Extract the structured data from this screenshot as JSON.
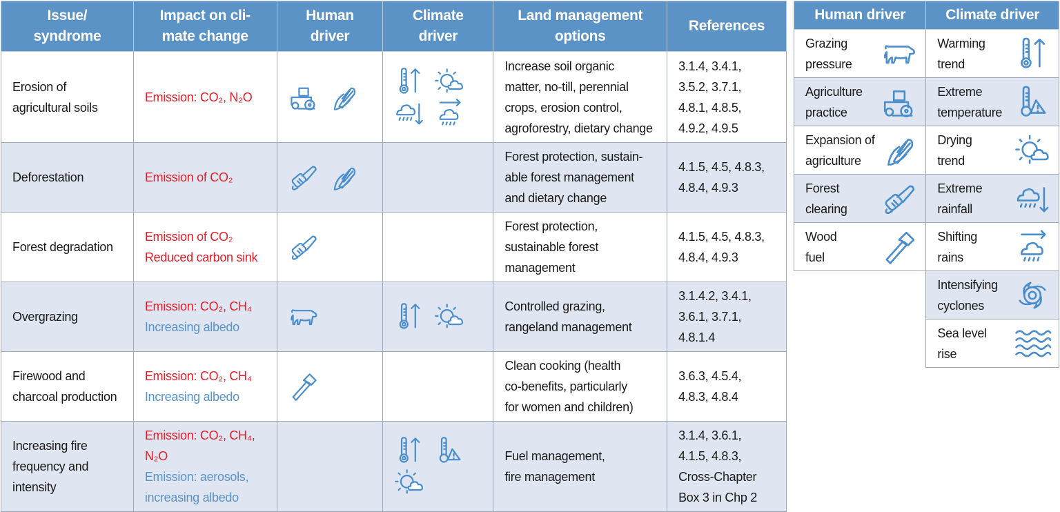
{
  "colors": {
    "header_bg": "#5b93c6",
    "alt_row": "#dfe6f1",
    "emission_red": "#e0202a",
    "albedo_blue": "#5b93c6",
    "icon_blue": "#4a8dcc"
  },
  "main": {
    "headers": [
      "Issue/\nsyndrome",
      "Impact on cli-\nmate change",
      "Human\ndriver",
      "Climate\ndriver",
      "Land management\noptions",
      "References"
    ],
    "rows": [
      {
        "issue": "Erosion of\nagricultural soils",
        "impact": [
          {
            "text": "Emission: CO₂, N₂O",
            "color": "red"
          }
        ],
        "human": [
          "tractor-icon",
          "corn-icon"
        ],
        "climate": [
          "thermometer-up-icon",
          "sun-cloud-icon",
          "rain-down-icon",
          "shifting-rain-icon"
        ],
        "options": "Increase soil organic\nmatter, no-till, perennial\ncrops, erosion control,\nagroforestry, dietary change",
        "refs": "3.1.4, 3.4.1,\n3.5.2, 3.7.1,\n4.8.1, 4.8.5,\n4.9.2, 4.9.5"
      },
      {
        "issue": "Deforestation",
        "impact": [
          {
            "text": "Emission of CO₂",
            "color": "red"
          }
        ],
        "human": [
          "chainsaw-icon",
          "corn-icon"
        ],
        "climate": [],
        "options": "Forest protection, sustain-\nable forest management\nand dietary change",
        "refs": "4.1.5, 4.5, 4.8.3,\n4.8.4, 4.9.3"
      },
      {
        "issue": "Forest degradation",
        "impact": [
          {
            "text": "Emission of CO₂\nReduced carbon sink",
            "color": "red"
          }
        ],
        "human": [
          "chainsaw-icon"
        ],
        "climate": [],
        "options": "Forest protection,\nsustainable forest\nmanagement",
        "refs": "4.1.5, 4.5, 4.8.3,\n4.8.4, 4.9.3"
      },
      {
        "issue": "Overgrazing",
        "impact": [
          {
            "text": "Emission: CO₂, CH₄",
            "color": "red"
          },
          {
            "text": "Increasing albedo",
            "color": "blue"
          }
        ],
        "human": [
          "cow-icon"
        ],
        "climate": [
          "thermometer-up-icon",
          "sun-cloud-icon"
        ],
        "options": "Controlled grazing,\nrangeland management",
        "refs": "3.1.4.2, 3.4.1,\n3.6.1, 3.7.1,\n4.8.1.4"
      },
      {
        "issue": "Firewood and\ncharcoal production",
        "impact": [
          {
            "text": "Emission: CO₂, CH₄",
            "color": "red"
          },
          {
            "text": "Increasing albedo",
            "color": "blue"
          }
        ],
        "human": [
          "axe-icon"
        ],
        "climate": [],
        "options": "Clean cooking (health\nco-benefits, particularly\nfor women and children)",
        "refs": "3.6.3, 4.5.4,\n4.8.3, 4.8.4"
      },
      {
        "issue": "Increasing fire\nfrequency and\nintensity",
        "impact": [
          {
            "text": "Emission: CO₂, CH₄,\nN₂O",
            "color": "red"
          },
          {
            "text": "Emission: aerosols,\nincreasing albedo",
            "color": "blue"
          }
        ],
        "human": [],
        "climate": [
          "thermometer-up-icon",
          "thermometer-warning-icon",
          "sun-cloud-icon"
        ],
        "options": "Fuel management,\nfire management",
        "refs": "3.1.4, 3.6.1,\n4.1.5, 4.8.3,\nCross-Chapter\nBox 3 in Chp 2"
      }
    ]
  },
  "legend": {
    "human_header": "Human driver",
    "climate_header": "Climate driver",
    "human": [
      {
        "label": "Grazing\npressure",
        "icon": "cow-icon"
      },
      {
        "label": "Agriculture\npractice",
        "icon": "tractor-icon"
      },
      {
        "label": "Expansion of\nagriculture",
        "icon": "corn-icon"
      },
      {
        "label": "Forest\nclearing",
        "icon": "chainsaw-icon"
      },
      {
        "label": "Wood\nfuel",
        "icon": "axe-icon"
      }
    ],
    "climate": [
      {
        "label": "Warming\ntrend",
        "icon": "thermometer-up-icon"
      },
      {
        "label": "Extreme\ntemperature",
        "icon": "thermometer-warning-icon"
      },
      {
        "label": "Drying\ntrend",
        "icon": "sun-cloud-icon"
      },
      {
        "label": "Extreme\nrainfall",
        "icon": "rain-down-icon"
      },
      {
        "label": "Shifting\nrains",
        "icon": "shifting-rain-icon"
      },
      {
        "label": "Intensifying\ncyclones",
        "icon": "cyclone-icon"
      },
      {
        "label": "Sea level\nrise",
        "icon": "waves-icon"
      }
    ]
  }
}
